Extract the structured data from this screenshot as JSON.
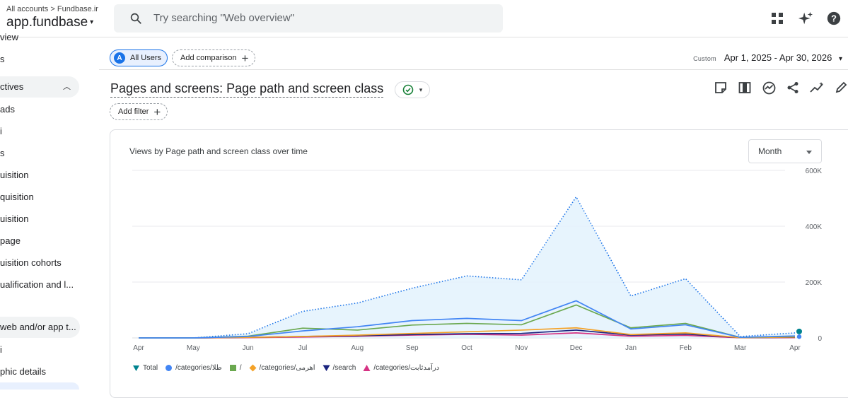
{
  "header": {
    "breadcrumb_accounts": "All accounts",
    "breadcrumb_sep": ">",
    "breadcrumb_account": "Fundbase.ir",
    "property_name": "app.fundbase",
    "search_placeholder": "Try searching \"Web overview\""
  },
  "sidebar": {
    "items": [
      {
        "label": "view"
      },
      {
        "label": "s"
      },
      {
        "label": "ctives"
      },
      {
        "label": "ads"
      },
      {
        "label": "i"
      },
      {
        "label": "s"
      },
      {
        "label": "uisition"
      },
      {
        "label": "quisition"
      },
      {
        "label": "uisition"
      },
      {
        "label": "page"
      },
      {
        "label": "uisition cohorts"
      },
      {
        "label": "ualification and l..."
      },
      {
        "label": "web and/or app t..."
      },
      {
        "label": "i"
      },
      {
        "label": "phic details"
      }
    ]
  },
  "toolbar": {
    "segment_letter": "A",
    "segment_label": "All Users",
    "add_comparison_label": "Add comparison",
    "date_custom_label": "Custom",
    "date_range": "Apr 1, 2025 - Apr 30, 2026"
  },
  "report": {
    "title": "Pages and screens: Page path and screen class",
    "add_filter_label": "Add filter"
  },
  "card": {
    "title": "Views by Page path and screen class over time",
    "granularity_value": "Month"
  },
  "colors": {
    "total": "#1a73e8",
    "categories_zaman": "#4285f4",
    "root": "#6aa84f",
    "categories_ahromi": "#f4a228",
    "search": "#1a237e",
    "categories_daramad": "#d63384"
  },
  "chart_data": {
    "type": "line",
    "x": [
      "Apr",
      "May",
      "Jun",
      "Jul",
      "Aug",
      "Sep",
      "Oct",
      "Nov",
      "Dec",
      "Jan",
      "Feb",
      "Mar",
      "Apr"
    ],
    "ylim": [
      0,
      600000
    ],
    "yticks": [
      "600K",
      "400K",
      "200K",
      "0"
    ],
    "ytick_values": [
      600000,
      400000,
      200000,
      0
    ],
    "grid": true,
    "legend_position": "bottom-left",
    "series": [
      {
        "name": "Total",
        "values": [
          0,
          0,
          15000,
          95000,
          125000,
          178000,
          222000,
          208000,
          505000,
          150000,
          212000,
          5000,
          18000
        ]
      },
      {
        "name": "/categories/طلا",
        "values": [
          0,
          0,
          5000,
          25000,
          40000,
          62000,
          70000,
          62000,
          133000,
          32000,
          47000,
          2000,
          7000
        ]
      },
      {
        "name": "/",
        "values": [
          0,
          0,
          6000,
          35000,
          28000,
          46000,
          52000,
          47000,
          118000,
          36000,
          52000,
          2000,
          6000
        ]
      },
      {
        "name": "/categories/اهرمی",
        "values": [
          0,
          0,
          2000,
          5000,
          10000,
          16000,
          22000,
          28000,
          36000,
          12000,
          18000,
          1000,
          3000
        ]
      },
      {
        "name": "/search",
        "values": [
          0,
          0,
          2000,
          5000,
          8000,
          12000,
          15000,
          16000,
          28000,
          10000,
          14000,
          1000,
          2000
        ]
      },
      {
        "name": "/categories/درآمدثابت",
        "values": [
          0,
          0,
          1000,
          3000,
          6000,
          10000,
          13000,
          10000,
          18000,
          6000,
          9000,
          500,
          1000
        ]
      }
    ]
  }
}
